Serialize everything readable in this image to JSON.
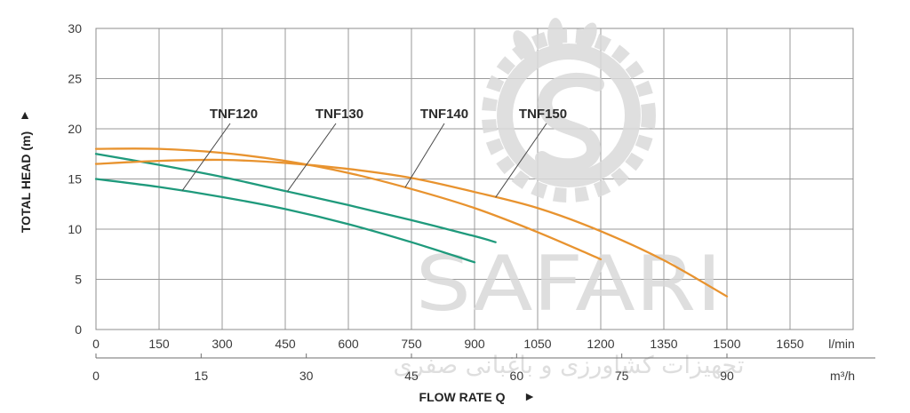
{
  "watermark": {
    "brand": "SAFARI",
    "subtitle": "تجهیزات کشاورزی و باغبانی صفری",
    "color": "#d8d8d8"
  },
  "chart_data": {
    "type": "line",
    "title": "",
    "xlabel": "FLOW RATE Q",
    "xlabel_marker": "►",
    "ylabel": "TOTAL HEAD (m)",
    "ylabel_marker": "▲",
    "x_unit": "l/min",
    "xlim": [
      0,
      1800
    ],
    "ylim": [
      0,
      30
    ],
    "x_ticks": [
      "0",
      "150",
      "300",
      "450",
      "600",
      "750",
      "900",
      "1050",
      "1200",
      "1350",
      "1500",
      "1650"
    ],
    "y_ticks": [
      "0",
      "5",
      "10",
      "15",
      "20",
      "25",
      "30"
    ],
    "secondary_x": {
      "unit": "m³/h",
      "ticks": [
        "0",
        "15",
        "30",
        "45",
        "60",
        "75",
        "90"
      ]
    },
    "grid": true,
    "series": [
      {
        "name": "TNF120",
        "color": "#1f9a7c",
        "x": [
          0,
          150,
          300,
          450,
          600,
          750,
          900
        ],
        "y": [
          15.0,
          14.2,
          13.2,
          12.0,
          10.5,
          8.7,
          6.7
        ]
      },
      {
        "name": "TNF130",
        "color": "#1f9a7c",
        "x": [
          0,
          150,
          300,
          450,
          600,
          750,
          900,
          950
        ],
        "y": [
          17.5,
          16.4,
          15.2,
          13.8,
          12.4,
          10.9,
          9.3,
          8.7
        ]
      },
      {
        "name": "TNF140",
        "color": "#e8932f",
        "x": [
          0,
          150,
          300,
          450,
          600,
          750,
          900,
          1050,
          1200
        ],
        "y": [
          18.0,
          18.0,
          17.6,
          16.8,
          15.6,
          14.0,
          12.1,
          9.7,
          7.0
        ]
      },
      {
        "name": "TNF150",
        "color": "#e8932f",
        "x": [
          0,
          150,
          300,
          450,
          600,
          750,
          900,
          1050,
          1200,
          1350,
          1500
        ],
        "y": [
          16.5,
          16.8,
          16.9,
          16.6,
          16.0,
          15.1,
          13.7,
          12.1,
          9.8,
          6.9,
          3.3
        ]
      }
    ]
  }
}
